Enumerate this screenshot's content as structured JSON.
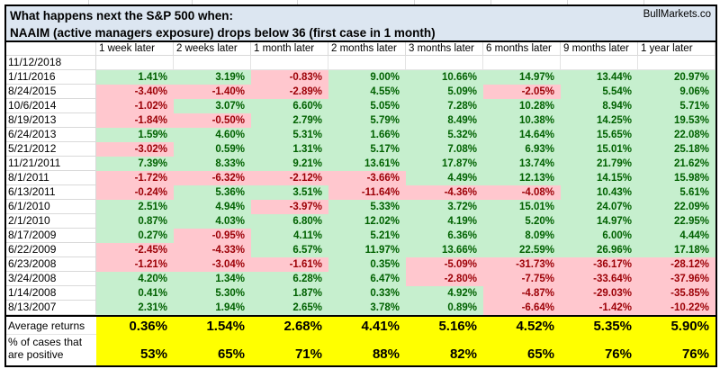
{
  "brand": "BullMarkets.co",
  "title": {
    "line1": "What happens next the S&P 500 when:",
    "line2": "NAAIM (active managers exposure) drops below 36 (first case in 1 month)"
  },
  "columns": [
    "1 week later",
    "2 weeks later",
    "1 month later",
    "2 months later",
    "3 months later",
    "6 months later",
    "9 months later",
    "1 year later"
  ],
  "rows": [
    {
      "date": "11/12/2018",
      "values": [
        "",
        "",
        "",
        "",
        "",
        "",
        "",
        ""
      ]
    },
    {
      "date": "1/11/2016",
      "values": [
        "1.41%",
        "3.19%",
        "-0.83%",
        "9.00%",
        "10.66%",
        "14.97%",
        "13.44%",
        "20.97%"
      ]
    },
    {
      "date": "8/24/2015",
      "values": [
        "-3.40%",
        "-1.40%",
        "-2.89%",
        "4.55%",
        "5.09%",
        "-2.05%",
        "5.54%",
        "9.06%"
      ]
    },
    {
      "date": "10/6/2014",
      "values": [
        "-1.02%",
        "3.07%",
        "6.60%",
        "5.05%",
        "7.28%",
        "10.28%",
        "8.94%",
        "5.71%"
      ]
    },
    {
      "date": "8/19/2013",
      "values": [
        "-1.84%",
        "-0.50%",
        "2.79%",
        "5.79%",
        "8.49%",
        "10.38%",
        "14.25%",
        "19.53%"
      ]
    },
    {
      "date": "6/24/2013",
      "values": [
        "1.59%",
        "4.60%",
        "5.31%",
        "1.66%",
        "5.32%",
        "14.64%",
        "15.65%",
        "22.08%"
      ]
    },
    {
      "date": "5/21/2012",
      "values": [
        "-3.02%",
        "0.59%",
        "1.31%",
        "5.17%",
        "7.08%",
        "6.93%",
        "15.01%",
        "25.18%"
      ]
    },
    {
      "date": "11/21/2011",
      "values": [
        "7.39%",
        "8.33%",
        "9.21%",
        "13.61%",
        "17.87%",
        "13.74%",
        "21.79%",
        "21.62%"
      ]
    },
    {
      "date": "8/1/2011",
      "values": [
        "-1.72%",
        "-6.32%",
        "-2.12%",
        "-3.66%",
        "4.49%",
        "12.13%",
        "14.15%",
        "15.98%"
      ]
    },
    {
      "date": "6/13/2011",
      "values": [
        "-0.24%",
        "5.36%",
        "3.51%",
        "-11.64%",
        "-4.36%",
        "-4.08%",
        "10.43%",
        "5.61%"
      ]
    },
    {
      "date": "6/1/2010",
      "values": [
        "2.51%",
        "4.94%",
        "-3.97%",
        "5.33%",
        "3.72%",
        "15.01%",
        "24.07%",
        "22.09%"
      ]
    },
    {
      "date": "2/1/2010",
      "values": [
        "0.87%",
        "4.03%",
        "6.80%",
        "12.02%",
        "4.19%",
        "5.20%",
        "14.97%",
        "22.95%"
      ]
    },
    {
      "date": "8/17/2009",
      "values": [
        "0.27%",
        "-0.95%",
        "4.11%",
        "5.21%",
        "6.36%",
        "8.09%",
        "6.00%",
        "4.44%"
      ]
    },
    {
      "date": "6/22/2009",
      "values": [
        "-2.45%",
        "-4.33%",
        "6.57%",
        "11.97%",
        "13.66%",
        "22.59%",
        "26.96%",
        "17.18%"
      ]
    },
    {
      "date": "6/23/2008",
      "values": [
        "-1.21%",
        "-3.04%",
        "-1.61%",
        "0.35%",
        "-5.09%",
        "-31.73%",
        "-36.17%",
        "-28.12%"
      ]
    },
    {
      "date": "3/24/2008",
      "values": [
        "4.20%",
        "1.34%",
        "6.28%",
        "6.47%",
        "-2.80%",
        "-7.75%",
        "-33.64%",
        "-37.96%"
      ]
    },
    {
      "date": "1/14/2008",
      "values": [
        "0.41%",
        "5.30%",
        "1.87%",
        "0.33%",
        "4.92%",
        "-4.87%",
        "-29.03%",
        "-35.85%"
      ]
    },
    {
      "date": "8/13/2007",
      "values": [
        "2.31%",
        "1.94%",
        "2.65%",
        "3.78%",
        "0.89%",
        "-6.64%",
        "-1.42%",
        "-10.22%"
      ]
    }
  ],
  "footer": {
    "average": {
      "label": "Average returns",
      "values": [
        "0.36%",
        "1.54%",
        "2.68%",
        "4.41%",
        "5.16%",
        "4.52%",
        "5.35%",
        "5.90%"
      ]
    },
    "positive": {
      "label": "% of cases that are positive",
      "values": [
        "53%",
        "65%",
        "71%",
        "88%",
        "82%",
        "65%",
        "76%",
        "76%"
      ]
    }
  },
  "colors": {
    "positive_bg": "#c6efce",
    "positive_text": "#006100",
    "negative_bg": "#ffc7ce",
    "negative_text": "#9c0006",
    "title_bg": "#dce6f1",
    "highlight_bg": "#ffff00",
    "gridline": "#d9d9d9",
    "border": "#000000"
  }
}
